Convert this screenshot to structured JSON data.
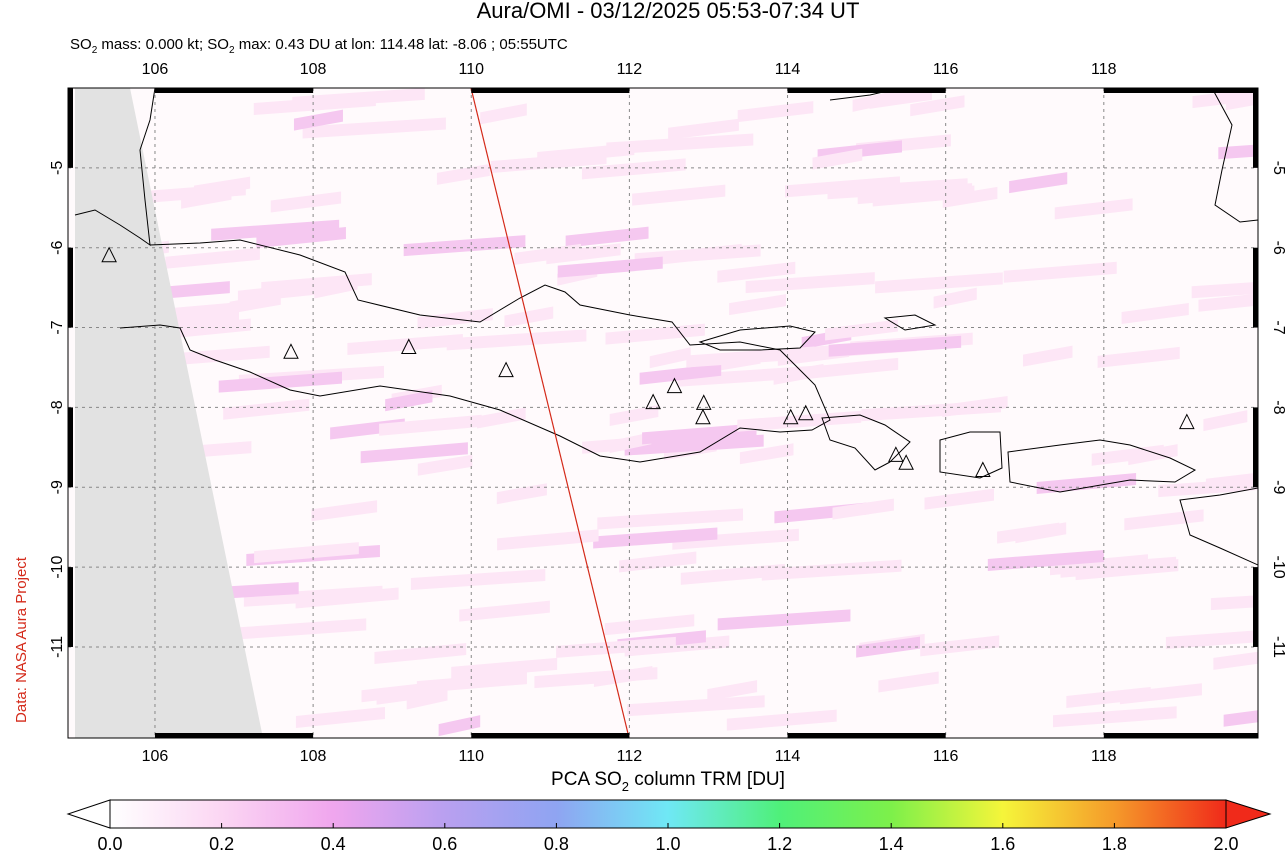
{
  "title": "Aura/OMI - 03/12/2025 05:53-07:34 UT",
  "subtitle": [
    "SO",
    "2",
    " mass: 0.000 kt; SO",
    "2",
    " max: 0.43 DU at lon: 114.48 lat: -8.06 ; 05:55UTC"
  ],
  "credit": "Data: NASA Aura Project",
  "map": {
    "xlim": [
      104.9,
      119.95
    ],
    "ylim": [
      -4.0,
      -12.14
    ],
    "xticks": [
      106,
      108,
      110,
      112,
      114,
      116,
      118
    ],
    "yticks": [
      -5,
      -6,
      -7,
      -8,
      -9,
      -10,
      -11
    ],
    "grid": true,
    "volcanoes": [
      {
        "lon": 105.42,
        "lat": -6.1
      },
      {
        "lon": 107.72,
        "lat": -7.31
      },
      {
        "lon": 109.21,
        "lat": -7.25
      },
      {
        "lon": 110.44,
        "lat": -7.54
      },
      {
        "lon": 112.3,
        "lat": -7.94
      },
      {
        "lon": 112.57,
        "lat": -7.74
      },
      {
        "lon": 112.94,
        "lat": -7.95
      },
      {
        "lon": 112.93,
        "lat": -8.13
      },
      {
        "lon": 114.04,
        "lat": -8.13
      },
      {
        "lon": 114.23,
        "lat": -8.08
      },
      {
        "lon": 115.37,
        "lat": -8.6
      },
      {
        "lon": 115.5,
        "lat": -8.7
      },
      {
        "lon": 116.47,
        "lat": -8.79
      },
      {
        "lon": 119.05,
        "lat": -8.19
      }
    ]
  },
  "colorbar": {
    "label": [
      "PCA SO",
      "2",
      " column TRM [DU]"
    ],
    "lim": [
      0,
      2
    ],
    "ticks": [
      {
        "value": 0,
        "label": "0.0"
      },
      0.2,
      0.4,
      0.6,
      0.8,
      {
        "value": 1,
        "label": "1.0"
      },
      1.2,
      1.4,
      1.6,
      1.8,
      {
        "value": 2,
        "label": "2.0"
      }
    ],
    "colors": [
      "#ffffff",
      "#fbd6f3",
      "#f0a6ee",
      "#b9a0f0",
      "#8fa4f2",
      "#6fe8f5",
      "#4ff07a",
      "#7df04a",
      "#f5f53a",
      "#f59a2a",
      "#f02a1a"
    ]
  }
}
